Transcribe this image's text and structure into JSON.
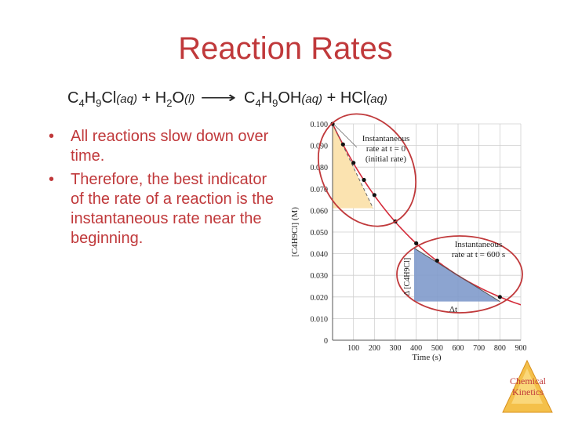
{
  "slide": {
    "title": "Reaction Rates",
    "bullets": [
      "All reactions slow down over time.",
      "Therefore, the best indicator of the rate of a reaction is the instantaneous rate near the beginning."
    ]
  },
  "equation": {
    "reactant1_pre": "C",
    "reactant1_s1": "4",
    "reactant1_mid": "H",
    "reactant1_s2": "9",
    "reactant1_post": "Cl",
    "reactant1_state": "(aq)",
    "plus1": " + ",
    "reactant2_pre": "H",
    "reactant2_s1": "2",
    "reactant2_post": "O",
    "reactant2_state": "(l)",
    "arrow": "⟶",
    "product1_pre": "C",
    "product1_s1": "4",
    "product1_mid": "H",
    "product1_s2": "9",
    "product1_post": "OH",
    "product1_state": "(aq)",
    "plus2": " + ",
    "product2": "HCl",
    "product2_state": "(aq)"
  },
  "colors": {
    "title": "#c0393b",
    "curve": "#d42b3a",
    "initial_triangle": "#fbe3b0",
    "late_triangle": "#7f9acb",
    "ellipse": "#c0393b",
    "logo": "#e9a526"
  },
  "chart_data": {
    "type": "line",
    "xlabel": "Time (s)",
    "ylabel": "[C4H9Cl] (M)",
    "xlim": [
      0,
      900
    ],
    "ylim": [
      0,
      0.1
    ],
    "x_ticks": [
      "100",
      "200",
      "300",
      "400",
      "500",
      "600",
      "700",
      "800",
      "900"
    ],
    "y_ticks": [
      "0",
      "0.010",
      "0.020",
      "0.030",
      "0.040",
      "0.050",
      "0.060",
      "0.070",
      "0.080",
      "0.090",
      "0.100"
    ],
    "series": [
      {
        "x": [
          0,
          50,
          100,
          150,
          200,
          300,
          400,
          500,
          800
        ],
        "y": [
          0.1,
          0.0905,
          0.082,
          0.0741,
          0.0671,
          0.0549,
          0.0448,
          0.0368,
          0.02
        ]
      }
    ],
    "annotations": {
      "initial_rate_label": [
        "Instantaneous",
        "rate at t = 0",
        "(initial rate)"
      ],
      "late_rate_label": [
        "Instantaneous",
        "rate at t = 600 s"
      ],
      "delta_conc_label": "Δ [C4H9Cl]",
      "delta_t_label": "Δt"
    },
    "grid": true
  },
  "logo": {
    "line1": "Chemical",
    "line2": "Kinetics"
  }
}
